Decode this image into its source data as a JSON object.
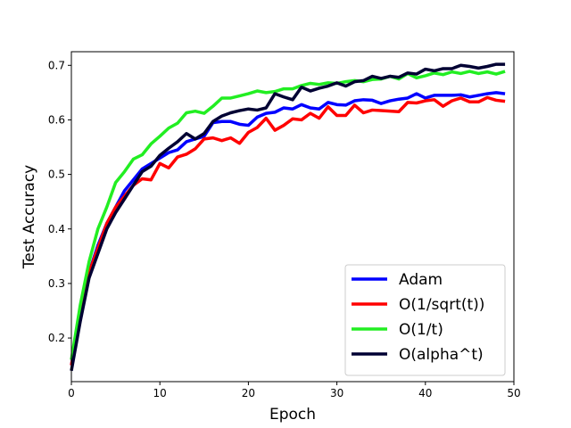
{
  "chart_data": {
    "type": "line",
    "title": "",
    "xlabel": "Epoch",
    "ylabel": "Test Accuracy",
    "xlim": [
      0,
      50
    ],
    "ylim": [
      0.12,
      0.725
    ],
    "x_ticks": [
      0,
      10,
      20,
      30,
      40,
      50
    ],
    "y_ticks": [
      0.2,
      0.3,
      0.4,
      0.5,
      0.6,
      0.7
    ],
    "x_tick_labels": [
      "0",
      "10",
      "20",
      "30",
      "40",
      "50"
    ],
    "y_tick_labels": [
      "0.2",
      "0.3",
      "0.4",
      "0.5",
      "0.6",
      "0.7"
    ],
    "grid": false,
    "legend_position": "lower-right",
    "x": [
      0,
      1,
      2,
      3,
      4,
      5,
      6,
      7,
      8,
      9,
      10,
      11,
      12,
      13,
      14,
      15,
      16,
      17,
      18,
      19,
      20,
      21,
      22,
      23,
      24,
      25,
      26,
      27,
      28,
      29,
      30,
      31,
      32,
      33,
      34,
      35,
      36,
      37,
      38,
      39,
      40,
      41,
      42,
      43,
      44,
      45,
      46,
      47,
      48,
      49
    ],
    "series": [
      {
        "name": "Adam",
        "color": "#0000ff",
        "values": [
          0.15,
          0.24,
          0.32,
          0.37,
          0.41,
          0.44,
          0.47,
          0.49,
          0.51,
          0.52,
          0.53,
          0.54,
          0.545,
          0.56,
          0.565,
          0.57,
          0.595,
          0.597,
          0.597,
          0.592,
          0.59,
          0.605,
          0.612,
          0.614,
          0.622,
          0.62,
          0.628,
          0.622,
          0.62,
          0.632,
          0.628,
          0.627,
          0.635,
          0.637,
          0.636,
          0.63,
          0.635,
          0.638,
          0.64,
          0.648,
          0.64,
          0.645,
          0.645,
          0.645,
          0.646,
          0.642,
          0.645,
          0.648,
          0.65,
          0.648
        ]
      },
      {
        "name": "O(1/sqrt(t))",
        "color": "#ff0000",
        "values": [
          0.15,
          0.24,
          0.32,
          0.365,
          0.41,
          0.44,
          0.46,
          0.48,
          0.492,
          0.49,
          0.52,
          0.512,
          0.532,
          0.537,
          0.547,
          0.565,
          0.567,
          0.562,
          0.567,
          0.557,
          0.577,
          0.586,
          0.603,
          0.581,
          0.59,
          0.602,
          0.6,
          0.612,
          0.603,
          0.624,
          0.608,
          0.608,
          0.627,
          0.613,
          0.618,
          0.617,
          0.616,
          0.615,
          0.632,
          0.631,
          0.635,
          0.637,
          0.625,
          0.635,
          0.64,
          0.633,
          0.633,
          0.641,
          0.636,
          0.634
        ]
      },
      {
        "name": "O(1/t)",
        "color": "#22ee22",
        "values": [
          0.16,
          0.26,
          0.34,
          0.4,
          0.44,
          0.485,
          0.505,
          0.528,
          0.536,
          0.556,
          0.57,
          0.585,
          0.594,
          0.613,
          0.616,
          0.612,
          0.625,
          0.64,
          0.64,
          0.644,
          0.648,
          0.653,
          0.65,
          0.652,
          0.657,
          0.657,
          0.663,
          0.667,
          0.665,
          0.668,
          0.667,
          0.67,
          0.672,
          0.67,
          0.674,
          0.675,
          0.68,
          0.675,
          0.685,
          0.677,
          0.681,
          0.686,
          0.683,
          0.688,
          0.685,
          0.689,
          0.685,
          0.688,
          0.684,
          0.689
        ]
      },
      {
        "name": "O(alpha^t)",
        "color": "#000033",
        "values": [
          0.14,
          0.23,
          0.31,
          0.355,
          0.4,
          0.43,
          0.455,
          0.48,
          0.505,
          0.515,
          0.535,
          0.548,
          0.56,
          0.575,
          0.565,
          0.575,
          0.597,
          0.607,
          0.613,
          0.617,
          0.62,
          0.618,
          0.622,
          0.648,
          0.642,
          0.637,
          0.66,
          0.653,
          0.658,
          0.662,
          0.668,
          0.662,
          0.67,
          0.672,
          0.68,
          0.676,
          0.68,
          0.678,
          0.686,
          0.684,
          0.693,
          0.69,
          0.694,
          0.694,
          0.7,
          0.698,
          0.695,
          0.698,
          0.702,
          0.702
        ]
      }
    ]
  }
}
